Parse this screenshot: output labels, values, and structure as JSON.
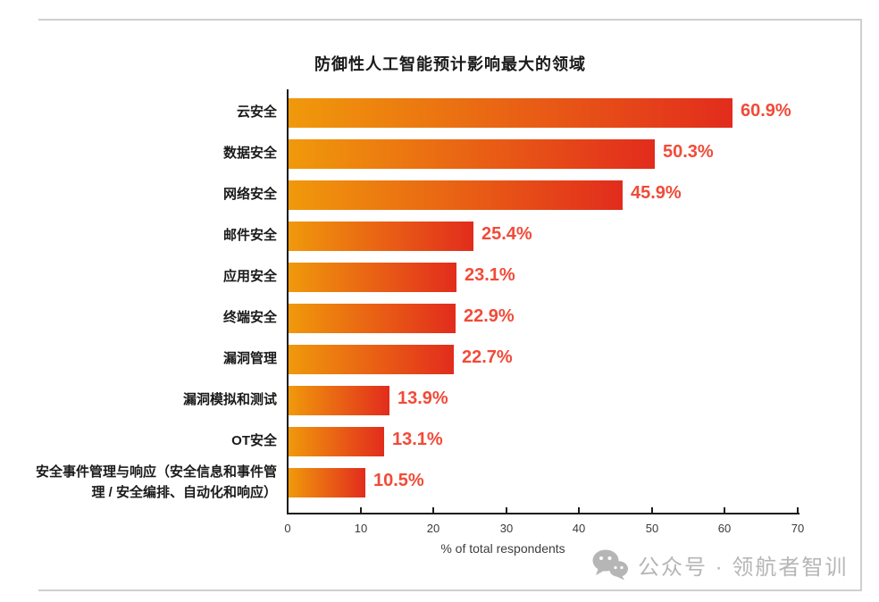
{
  "chart_data": {
    "type": "bar",
    "orientation": "horizontal",
    "title": "防御性人工智能预计影响最大的领域",
    "categories": [
      "云安全",
      "数据安全",
      "网络安全",
      "邮件安全",
      "应用安全",
      "终端安全",
      "漏洞管理",
      "漏洞模拟和测试",
      "OT安全",
      "安全事件管理与响应（安全信息和事件管理 / 安全编排、自动化和响应）"
    ],
    "values": [
      60.9,
      50.3,
      45.9,
      25.4,
      23.1,
      22.9,
      22.7,
      13.9,
      13.1,
      10.5
    ],
    "value_labels": [
      "60.9%",
      "50.3%",
      "45.9%",
      "25.4%",
      "23.1%",
      "22.9%",
      "22.7%",
      "13.9%",
      "13.1%",
      "10.5%"
    ],
    "xlabel": "% of total respondents",
    "xlim": [
      0,
      70
    ],
    "x_ticks": [
      "0",
      "10",
      "20",
      "30",
      "40",
      "50",
      "60",
      "70"
    ],
    "grid": false,
    "legend": "none",
    "colors": {
      "bar_gradient_start": "#F0990B",
      "bar_gradient_end": "#E22C1D",
      "value_label": "#F14B38",
      "axis_line": "#1c1c1c",
      "tick_label": "#3a3a3a",
      "frame_border": "#cfcfcf"
    }
  },
  "watermark": {
    "icon": "wechat-icon",
    "text": "公众号 · 领航者智训",
    "color": "#b6b6b6"
  }
}
